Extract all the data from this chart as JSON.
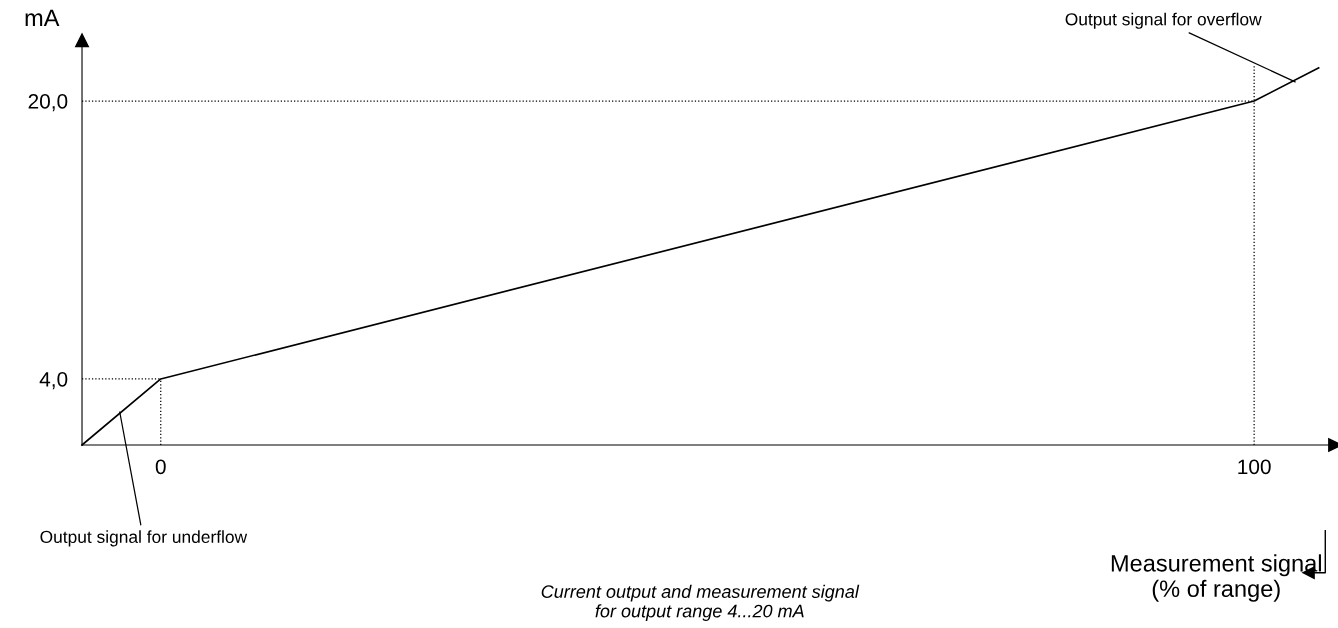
{
  "chart_data": {
    "type": "line",
    "xlabel": "Measurement signal\n(% of range)",
    "ylabel": "mA",
    "x": [
      -7.2,
      0,
      100,
      105.9
    ],
    "series": [
      {
        "color": "#000000",
        "values": [
          0.2,
          4,
          20,
          21.9
        ]
      },
      {
        "color": "#000000",
        "line_style": "dotted",
        "x": [
          -7.2,
          0
        ],
        "values": [
          4,
          4
        ]
      },
      {
        "color": "#000000",
        "line_style": "dotted",
        "x": [
          -7.2,
          100
        ],
        "values": [
          20,
          20
        ]
      },
      {
        "color": "#000000",
        "line_style": "dotted",
        "x": [
          0,
          0
        ],
        "values": [
          0.2,
          4
        ]
      },
      {
        "color": "#000000",
        "line_style": "dotted",
        "x": [
          100,
          100
        ],
        "values": [
          0.2,
          22
        ]
      }
    ],
    "xlim": [
      -7.2,
      107.4
    ],
    "ylim": [
      0.2,
      23.5
    ],
    "xticks": [
      0,
      100
    ],
    "yticks": [
      {
        "value": 4,
        "label": "4,0"
      },
      {
        "value": 20,
        "label": "20,0"
      }
    ],
    "annotations": [
      {
        "text": "Output signal for overflow",
        "x": 103.75,
        "y": 21.1
      },
      {
        "text": "Output signal for underflow",
        "x": -3.75,
        "y": 2.1
      },
      "Current output and measurement signal\nfor output range 4...20 mA"
    ],
    "grid": false,
    "marker": "none",
    "line_style": "solid"
  }
}
